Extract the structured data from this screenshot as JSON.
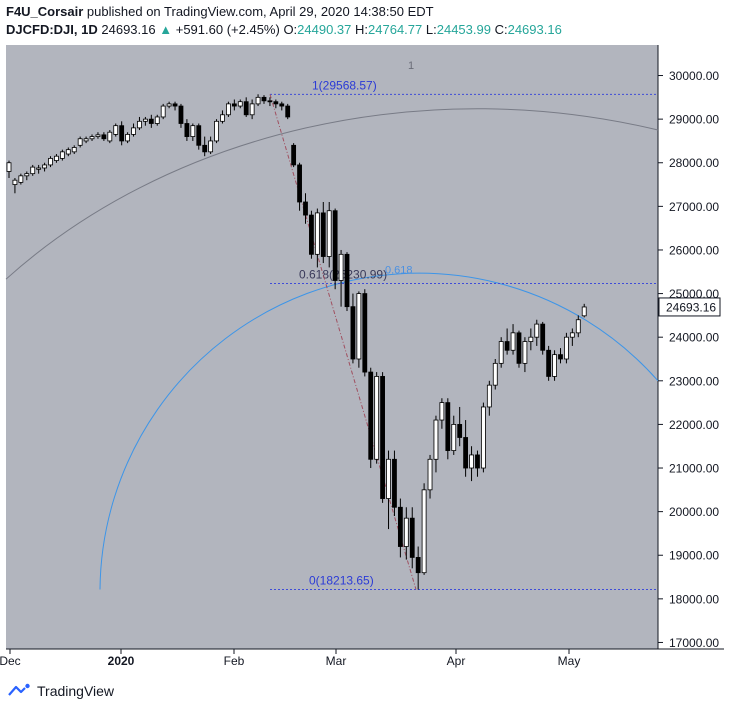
{
  "header": {
    "author": "F4U_Corsair",
    "published": " published on TradingView.com, April 29, 2020 14:38:50 EDT",
    "symbol": "DJCFD:DJI, 1D",
    "last": "24693.16",
    "change_arrow": "▲",
    "change": "+591.60 (+2.45%)",
    "o_label": "O:",
    "o_value": "24490.37",
    "h_label": "H:",
    "h_value": "24764.77",
    "l_label": "L:",
    "l_value": "24453.99",
    "c_label": "C:",
    "c_value": "24693.16"
  },
  "brand": {
    "name": "TradingView",
    "icon": "tradingview-logo-icon"
  },
  "colors": {
    "plot_bg": "#b2b5be",
    "axis_bg": "#ffffff",
    "candle": "#000000",
    "fib_line": "#3f4cd8",
    "fib_text": "#2b3bd6",
    "fib_0618_label": "#4a90e2",
    "arc_outer": "#787b86",
    "arc_inner": "#3d95e8",
    "trend": "#a05060",
    "price_tag_border": "#131722",
    "accent_up": "#26a69a"
  },
  "chart_data": {
    "type": "candlestick",
    "symbol": "DJCFD:DJI",
    "interval": "1D",
    "ylim": [
      16850,
      30700
    ],
    "y_ticks": [
      "30000.00",
      "29000.00",
      "28000.00",
      "27000.00",
      "26000.00",
      "25000.00",
      "24000.00",
      "23000.00",
      "22000.00",
      "21000.00",
      "20000.00",
      "19000.00",
      "18000.00",
      "17000.00"
    ],
    "x_ticks": [
      "Dec",
      "2020",
      "Feb",
      "Mar",
      "Apr",
      "May"
    ],
    "last_price_label": "24693.16",
    "fib_levels": [
      {
        "ratio": "1",
        "price": 29568.57,
        "label": "1(29568.57)"
      },
      {
        "ratio": "0.618",
        "price": 25230.99,
        "label": "0.618(25230.99)"
      },
      {
        "ratio": "0",
        "price": 18213.65,
        "label": "0(18213.65)"
      }
    ],
    "arc_labels": [
      "1",
      "0.618"
    ],
    "candles": [
      {
        "o": 27800,
        "h": 28050,
        "l": 27650,
        "c": 28000
      },
      {
        "o": 27500,
        "h": 27650,
        "l": 27300,
        "c": 27600
      },
      {
        "o": 27550,
        "h": 27750,
        "l": 27500,
        "c": 27700
      },
      {
        "o": 27700,
        "h": 27800,
        "l": 27600,
        "c": 27750
      },
      {
        "o": 27750,
        "h": 27950,
        "l": 27700,
        "c": 27900
      },
      {
        "o": 27850,
        "h": 27950,
        "l": 27750,
        "c": 27880
      },
      {
        "o": 27880,
        "h": 28000,
        "l": 27800,
        "c": 27950
      },
      {
        "o": 27950,
        "h": 28150,
        "l": 27900,
        "c": 28100
      },
      {
        "o": 28050,
        "h": 28200,
        "l": 28000,
        "c": 28150
      },
      {
        "o": 28100,
        "h": 28300,
        "l": 28050,
        "c": 28250
      },
      {
        "o": 28200,
        "h": 28350,
        "l": 28150,
        "c": 28300
      },
      {
        "o": 28250,
        "h": 28400,
        "l": 28200,
        "c": 28350
      },
      {
        "o": 28400,
        "h": 28600,
        "l": 28350,
        "c": 28550
      },
      {
        "o": 28500,
        "h": 28600,
        "l": 28450,
        "c": 28550
      },
      {
        "o": 28550,
        "h": 28650,
        "l": 28500,
        "c": 28600
      },
      {
        "o": 28600,
        "h": 28700,
        "l": 28550,
        "c": 28640
      },
      {
        "o": 28640,
        "h": 28700,
        "l": 28500,
        "c": 28550
      },
      {
        "o": 28500,
        "h": 28750,
        "l": 28450,
        "c": 28700
      },
      {
        "o": 28650,
        "h": 28900,
        "l": 28600,
        "c": 28850
      },
      {
        "o": 28850,
        "h": 28950,
        "l": 28400,
        "c": 28500
      },
      {
        "o": 28500,
        "h": 28700,
        "l": 28450,
        "c": 28650
      },
      {
        "o": 28650,
        "h": 28900,
        "l": 28600,
        "c": 28800
      },
      {
        "o": 28800,
        "h": 29050,
        "l": 28750,
        "c": 28950
      },
      {
        "o": 28950,
        "h": 29050,
        "l": 28850,
        "c": 29000
      },
      {
        "o": 29000,
        "h": 29100,
        "l": 28800,
        "c": 28900
      },
      {
        "o": 28900,
        "h": 29100,
        "l": 28850,
        "c": 29050
      },
      {
        "o": 29050,
        "h": 29350,
        "l": 29000,
        "c": 29300
      },
      {
        "o": 29300,
        "h": 29400,
        "l": 29250,
        "c": 29350
      },
      {
        "o": 29350,
        "h": 29400,
        "l": 29200,
        "c": 29300
      },
      {
        "o": 29300,
        "h": 29350,
        "l": 28800,
        "c": 28900
      },
      {
        "o": 28900,
        "h": 29000,
        "l": 28500,
        "c": 28600
      },
      {
        "o": 28600,
        "h": 28900,
        "l": 28500,
        "c": 28850
      },
      {
        "o": 28850,
        "h": 28900,
        "l": 28300,
        "c": 28400
      },
      {
        "o": 28400,
        "h": 28600,
        "l": 28150,
        "c": 28250
      },
      {
        "o": 28250,
        "h": 28600,
        "l": 28200,
        "c": 28500
      },
      {
        "o": 28500,
        "h": 29000,
        "l": 28450,
        "c": 28950
      },
      {
        "o": 28950,
        "h": 29200,
        "l": 28900,
        "c": 29100
      },
      {
        "o": 29100,
        "h": 29400,
        "l": 29050,
        "c": 29350
      },
      {
        "o": 29350,
        "h": 29450,
        "l": 29200,
        "c": 29300
      },
      {
        "o": 29300,
        "h": 29450,
        "l": 29250,
        "c": 29400
      },
      {
        "o": 29400,
        "h": 29500,
        "l": 29050,
        "c": 29100
      },
      {
        "o": 29100,
        "h": 29450,
        "l": 29000,
        "c": 29350
      },
      {
        "o": 29350,
        "h": 29570,
        "l": 29300,
        "c": 29500
      },
      {
        "o": 29500,
        "h": 29550,
        "l": 29350,
        "c": 29420
      },
      {
        "o": 29420,
        "h": 29500,
        "l": 29300,
        "c": 29400
      },
      {
        "o": 29400,
        "h": 29450,
        "l": 29250,
        "c": 29350
      },
      {
        "o": 29350,
        "h": 29400,
        "l": 29200,
        "c": 29300
      },
      {
        "o": 29300,
        "h": 29350,
        "l": 29000,
        "c": 29050
      },
      {
        "o": 28400,
        "h": 28450,
        "l": 27900,
        "c": 27950
      },
      {
        "o": 27950,
        "h": 28000,
        "l": 26900,
        "c": 27100
      },
      {
        "o": 27100,
        "h": 27300,
        "l": 26600,
        "c": 26800
      },
      {
        "o": 26800,
        "h": 26900,
        "l": 25800,
        "c": 25900
      },
      {
        "o": 25900,
        "h": 26950,
        "l": 25600,
        "c": 26850
      },
      {
        "o": 26850,
        "h": 27100,
        "l": 25700,
        "c": 25850
      },
      {
        "o": 25850,
        "h": 27100,
        "l": 25600,
        "c": 26900
      },
      {
        "o": 26900,
        "h": 26950,
        "l": 25100,
        "c": 25300
      },
      {
        "o": 25300,
        "h": 26000,
        "l": 24700,
        "c": 25900
      },
      {
        "o": 25900,
        "h": 25950,
        "l": 24600,
        "c": 24700
      },
      {
        "o": 24700,
        "h": 25000,
        "l": 23400,
        "c": 23500
      },
      {
        "o": 23500,
        "h": 25050,
        "l": 23300,
        "c": 25000
      },
      {
        "o": 25000,
        "h": 25100,
        "l": 23100,
        "c": 23200
      },
      {
        "o": 23200,
        "h": 23300,
        "l": 21000,
        "c": 21200
      },
      {
        "o": 21200,
        "h": 23200,
        "l": 21100,
        "c": 23100
      },
      {
        "o": 23100,
        "h": 23200,
        "l": 20200,
        "c": 20300
      },
      {
        "o": 20300,
        "h": 21400,
        "l": 19600,
        "c": 21200
      },
      {
        "o": 21200,
        "h": 21400,
        "l": 19900,
        "c": 20100
      },
      {
        "o": 20100,
        "h": 20300,
        "l": 18950,
        "c": 19200
      },
      {
        "o": 19200,
        "h": 20100,
        "l": 18900,
        "c": 19850
      },
      {
        "o": 19850,
        "h": 20100,
        "l": 18700,
        "c": 18950
      },
      {
        "o": 18950,
        "h": 19200,
        "l": 18213,
        "c": 18600
      },
      {
        "o": 18600,
        "h": 20650,
        "l": 18550,
        "c": 20500
      },
      {
        "o": 20500,
        "h": 21300,
        "l": 20300,
        "c": 21200
      },
      {
        "o": 21200,
        "h": 22200,
        "l": 20900,
        "c": 22100
      },
      {
        "o": 22100,
        "h": 22600,
        "l": 21900,
        "c": 22500
      },
      {
        "o": 22500,
        "h": 22600,
        "l": 21200,
        "c": 21400
      },
      {
        "o": 21400,
        "h": 22200,
        "l": 21300,
        "c": 22000
      },
      {
        "o": 22000,
        "h": 22400,
        "l": 21500,
        "c": 21700
      },
      {
        "o": 21700,
        "h": 22100,
        "l": 20800,
        "c": 21000
      },
      {
        "o": 21000,
        "h": 21500,
        "l": 20700,
        "c": 21300
      },
      {
        "o": 21300,
        "h": 21400,
        "l": 20800,
        "c": 21000
      },
      {
        "o": 21000,
        "h": 22500,
        "l": 20900,
        "c": 22400
      },
      {
        "o": 22400,
        "h": 23000,
        "l": 22200,
        "c": 22900
      },
      {
        "o": 22900,
        "h": 23500,
        "l": 22800,
        "c": 23400
      },
      {
        "o": 23400,
        "h": 24000,
        "l": 23300,
        "c": 23900
      },
      {
        "o": 23900,
        "h": 24200,
        "l": 23600,
        "c": 23700
      },
      {
        "o": 23700,
        "h": 24300,
        "l": 23600,
        "c": 24100
      },
      {
        "o": 24100,
        "h": 24150,
        "l": 23300,
        "c": 23400
      },
      {
        "o": 23400,
        "h": 24000,
        "l": 23200,
        "c": 23900
      },
      {
        "o": 23900,
        "h": 24200,
        "l": 23700,
        "c": 24000
      },
      {
        "o": 24000,
        "h": 24400,
        "l": 23800,
        "c": 24300
      },
      {
        "o": 24300,
        "h": 24350,
        "l": 23600,
        "c": 23700
      },
      {
        "o": 23700,
        "h": 23800,
        "l": 23000,
        "c": 23100
      },
      {
        "o": 23100,
        "h": 23700,
        "l": 23000,
        "c": 23600
      },
      {
        "o": 23600,
        "h": 23750,
        "l": 23400,
        "c": 23500
      },
      {
        "o": 23500,
        "h": 24100,
        "l": 23400,
        "c": 24000
      },
      {
        "o": 24000,
        "h": 24200,
        "l": 23800,
        "c": 24100
      },
      {
        "o": 24100,
        "h": 24500,
        "l": 24000,
        "c": 24400
      },
      {
        "o": 24490,
        "h": 24765,
        "l": 24454,
        "c": 24693
      }
    ]
  }
}
